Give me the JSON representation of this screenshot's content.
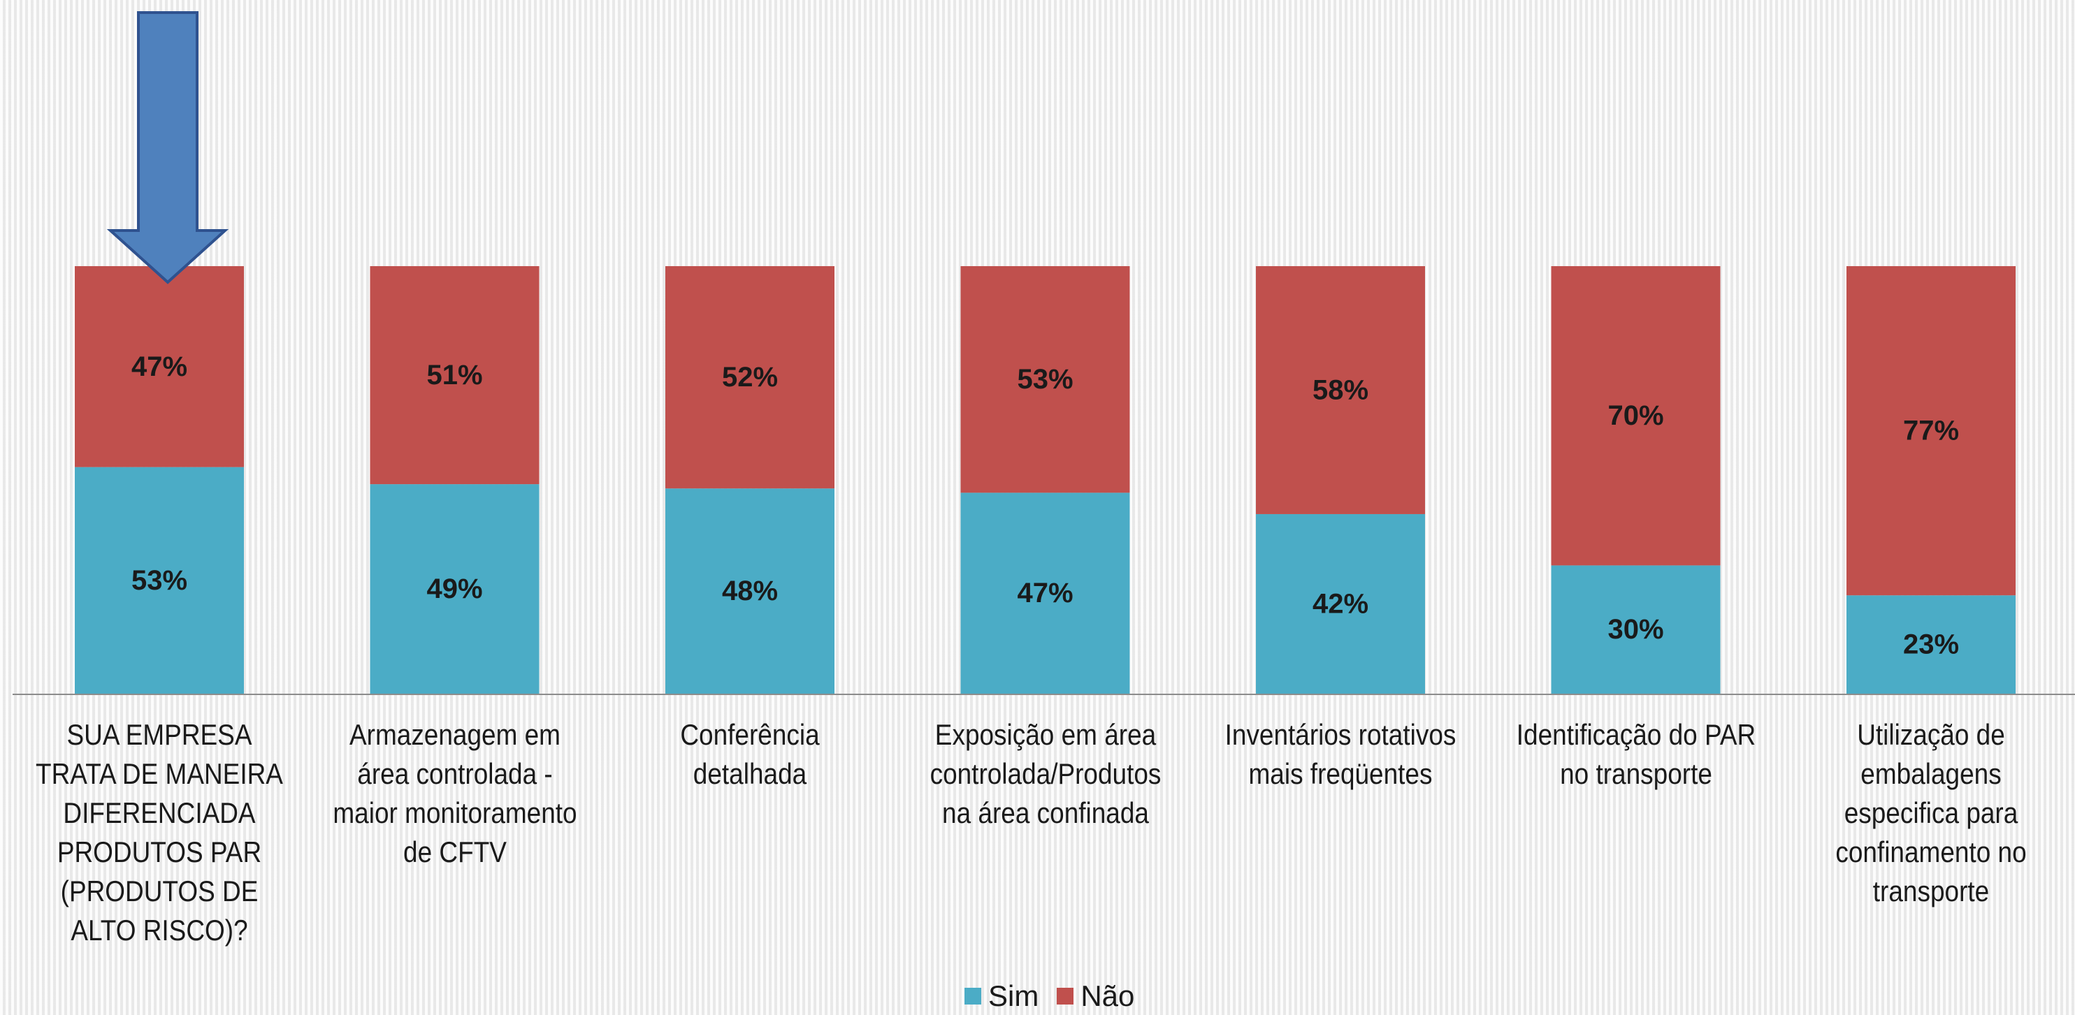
{
  "chart_data": {
    "type": "bar",
    "stacked": true,
    "percent": true,
    "categories": [
      "SUA EMPRESA TRATA DE MANEIRA DIFERENCIADA PRODUTOS PAR (PRODUTOS DE ALTO RISCO)?",
      "Armazenagem em área controlada - maior monitoramento de CFTV",
      "Conferência detalhada",
      "Exposição em área controlada/Produtos na área confinada",
      "Inventários rotativos mais freqüentes",
      "Identificação do PAR no transporte",
      "Utilização de embalagens especifica para confinamento no transporte"
    ],
    "series": [
      {
        "name": "Sim",
        "color": "#4bacc6",
        "values": [
          53,
          49,
          48,
          47,
          42,
          30,
          23
        ],
        "labels": [
          "53%",
          "49%",
          "48%",
          "47%",
          "42%",
          "30%",
          "23%"
        ]
      },
      {
        "name": "Não",
        "color": "#c0504d",
        "values": [
          47,
          51,
          52,
          53,
          58,
          70,
          77
        ],
        "labels": [
          "47%",
          "51%",
          "52%",
          "53%",
          "58%",
          "70%",
          "77%"
        ]
      }
    ],
    "ylim": [
      0,
      100
    ],
    "legend": "bottom",
    "grid": false,
    "annotation": {
      "type": "arrow",
      "color": "#4f81bd",
      "target_category": 0
    }
  }
}
